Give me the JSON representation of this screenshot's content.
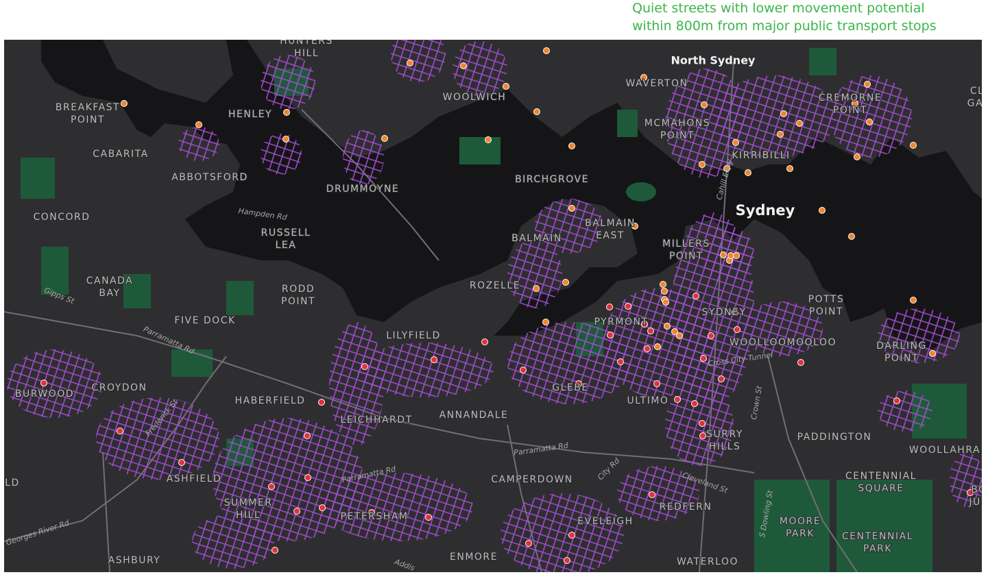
{
  "legend": {
    "lines": [
      "Quiet streets with lower movement potential",
      "within 800m from major public transport stops"
    ]
  },
  "cities": [
    "North Sydney",
    "Sydney"
  ],
  "suburbs": [
    [
      "HUNTERS",
      "HILL"
    ],
    [
      "BREAKFAST",
      "POINT"
    ],
    [
      "CABARITA"
    ],
    [
      "HENLEY"
    ],
    [
      "WOOLWICH"
    ],
    [
      "ABBOTSFORD"
    ],
    [
      "DRUMMOYNE"
    ],
    [
      "BIRCHGROVE"
    ],
    [
      "CONCORD"
    ],
    [
      "RUSSELL",
      "LEA"
    ],
    [
      "BALMAIN",
      "EAST"
    ],
    [
      "BALMAIN"
    ],
    [
      "MILLERS",
      "POINT"
    ],
    [
      "WAVERTON"
    ],
    [
      "CREMORNE",
      "POINT"
    ],
    [
      "MCMAHONS",
      "POINT"
    ],
    [
      "KIRRIBILLI"
    ],
    [
      "CANADA",
      "BAY"
    ],
    [
      "RODD",
      "POINT"
    ],
    [
      "ROZELLE"
    ],
    [
      "POTTS",
      "POINT"
    ],
    [
      "FIVE DOCK"
    ],
    [
      "PYRMONT"
    ],
    [
      "SYDNEY"
    ],
    [
      "LILYFIELD"
    ],
    [
      "WOOLLOOMOOLOO"
    ],
    [
      "DARLING",
      "POINT"
    ],
    [
      "BURWOOD"
    ],
    [
      "CROYDON"
    ],
    [
      "HABERFIELD"
    ],
    [
      "GLEBE"
    ],
    [
      "ULTIMO"
    ],
    [
      "LEICHHARDT"
    ],
    [
      "ANNANDALE"
    ],
    [
      "SURRY",
      "HILLS"
    ],
    [
      "PADDINGTON"
    ],
    [
      "WOOLLAHRA"
    ],
    [
      "ASHFIELD"
    ],
    [
      "CAMPERDOWN"
    ],
    [
      "CENTENNIAL",
      "SQUARE"
    ],
    [
      "SUMMER",
      "HILL"
    ],
    [
      "PETERSHAM"
    ],
    [
      "REDFERN"
    ],
    [
      "EVELEIGH"
    ],
    [
      "MOORE",
      "PARK"
    ],
    [
      "CENTENNIAL",
      "PARK"
    ],
    [
      "ASHBURY"
    ],
    [
      "ENMORE"
    ],
    [
      "WATERLOO"
    ],
    [
      "CLI",
      "GAR"
    ],
    [
      "LD"
    ],
    [
      "BO",
      "JUN"
    ]
  ],
  "streets": [
    "Hampden Rd",
    "Gipps St",
    "Parramatta Rd",
    "Frederick St",
    "Parramatta Rd",
    "Parramatta Rd",
    "City Rd",
    "Cleveland St",
    "S Dowling St",
    "Crown St",
    "Cross City Tunnel",
    "Cahill Expy",
    "Georges River Rd",
    "Addis"
  ]
}
